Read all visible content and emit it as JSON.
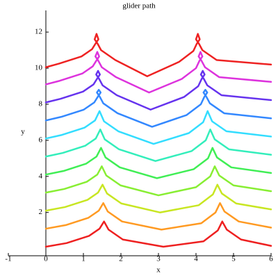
{
  "chart_data": {
    "type": "line",
    "title": "glider path",
    "xlabel": "x",
    "ylabel": "y",
    "xlim": [
      -1,
      6
    ],
    "ylim": [
      -0.4,
      13.2
    ],
    "xticks": [
      -1,
      0,
      1,
      2,
      3,
      4,
      5,
      6
    ],
    "yticks": [
      2,
      4,
      6,
      8,
      10,
      12
    ],
    "series": [
      {
        "color": "#ee2020",
        "x": [
          0,
          0.55,
          1.15,
          1.43,
          1.55,
          1.67,
          2.05,
          3.13,
          4.2,
          4.58,
          4.7,
          4.82,
          5.2,
          6
        ],
        "y": [
          0.1,
          0.3,
          0.7,
          1.1,
          1.5,
          1.05,
          0.5,
          0.1,
          0.4,
          1.0,
          1.5,
          1.05,
          0.5,
          0.15
        ]
      },
      {
        "color": "#ff9a22",
        "x": [
          0,
          0.53,
          1.13,
          1.41,
          1.53,
          1.65,
          2.03,
          3.08,
          4.14,
          4.52,
          4.64,
          4.76,
          5.14,
          6
        ],
        "y": [
          1.1,
          1.3,
          1.7,
          2.1,
          2.52,
          2.05,
          1.5,
          1.05,
          1.4,
          2.0,
          2.52,
          2.05,
          1.5,
          1.16
        ]
      },
      {
        "color": "#c8e622",
        "x": [
          0,
          0.51,
          1.11,
          1.39,
          1.51,
          1.63,
          2.01,
          3.04,
          4.07,
          4.45,
          4.57,
          4.69,
          5.07,
          6
        ],
        "y": [
          2.1,
          2.3,
          2.7,
          3.1,
          3.54,
          3.05,
          2.5,
          2.0,
          2.4,
          3.0,
          3.54,
          3.05,
          2.5,
          2.17
        ]
      },
      {
        "color": "#88ee33",
        "x": [
          0,
          0.49,
          1.09,
          1.37,
          1.49,
          1.61,
          1.99,
          3.0,
          4.0,
          4.38,
          4.5,
          4.62,
          5.0,
          6
        ],
        "y": [
          3.1,
          3.3,
          3.7,
          4.1,
          4.56,
          4.05,
          3.5,
          2.95,
          3.4,
          4.0,
          4.56,
          4.05,
          3.5,
          3.18
        ]
      },
      {
        "color": "#40ee55",
        "x": [
          0,
          0.47,
          1.07,
          1.35,
          1.47,
          1.59,
          1.97,
          2.96,
          3.94,
          4.32,
          4.44,
          4.56,
          4.94,
          6
        ],
        "y": [
          4.1,
          4.3,
          4.7,
          5.1,
          5.58,
          5.05,
          4.5,
          3.9,
          4.4,
          5.0,
          5.58,
          5.05,
          4.5,
          4.19
        ]
      },
      {
        "color": "#33eebb",
        "x": [
          0,
          0.45,
          1.05,
          1.33,
          1.45,
          1.57,
          1.95,
          2.92,
          3.88,
          4.26,
          4.38,
          4.5,
          4.88,
          6
        ],
        "y": [
          5.1,
          5.3,
          5.7,
          6.1,
          6.6,
          6.05,
          5.5,
          4.85,
          5.4,
          6.0,
          6.6,
          6.05,
          5.5,
          5.2
        ]
      },
      {
        "color": "#33ddff",
        "x": [
          0,
          0.43,
          1.03,
          1.31,
          1.43,
          1.55,
          1.93,
          2.87,
          3.81,
          4.19,
          4.31,
          4.43,
          4.81,
          6
        ],
        "y": [
          6.1,
          6.3,
          6.7,
          7.1,
          7.62,
          7.05,
          6.5,
          5.8,
          6.4,
          7.0,
          7.62,
          7.05,
          6.5,
          6.21
        ]
      },
      {
        "color": "#3388ff",
        "x": [
          0,
          0.41,
          1.01,
          1.29,
          1.38,
          1.46,
          1.41,
          1.36,
          1.44,
          1.53,
          1.91,
          2.83,
          3.75,
          4.13,
          4.22,
          4.3,
          4.25,
          4.2,
          4.28,
          4.37,
          4.75,
          6
        ],
        "y": [
          7.1,
          7.3,
          7.7,
          8.1,
          8.4,
          8.65,
          8.8,
          8.65,
          8.4,
          8.05,
          7.5,
          6.75,
          7.4,
          8.0,
          8.4,
          8.65,
          8.8,
          8.65,
          8.4,
          8.05,
          7.5,
          7.22
        ]
      },
      {
        "color": "#6633ee",
        "x": [
          0,
          0.39,
          0.99,
          1.27,
          1.36,
          1.44,
          1.39,
          1.34,
          1.42,
          1.51,
          1.89,
          2.79,
          3.68,
          4.06,
          4.15,
          4.23,
          4.18,
          4.13,
          4.21,
          4.3,
          4.68,
          6
        ],
        "y": [
          8.1,
          8.3,
          8.7,
          9.1,
          9.4,
          9.65,
          9.85,
          9.65,
          9.4,
          9.05,
          8.5,
          7.7,
          8.4,
          9.0,
          9.4,
          9.65,
          9.85,
          9.65,
          9.4,
          9.05,
          8.5,
          8.23
        ]
      },
      {
        "color": "#dd33dd",
        "x": [
          0,
          0.37,
          0.97,
          1.25,
          1.34,
          1.42,
          1.37,
          1.32,
          1.4,
          1.49,
          1.87,
          2.75,
          3.62,
          4.0,
          4.09,
          4.17,
          4.12,
          4.07,
          4.15,
          4.24,
          4.62,
          6
        ],
        "y": [
          9.1,
          9.3,
          9.7,
          10.1,
          10.4,
          10.65,
          10.9,
          10.65,
          10.4,
          10.05,
          9.5,
          8.65,
          9.4,
          10.0,
          10.4,
          10.65,
          10.9,
          10.65,
          10.4,
          10.05,
          9.5,
          9.24
        ]
      },
      {
        "color": "#ee2222",
        "x": [
          0,
          0.35,
          0.95,
          1.23,
          1.32,
          1.4,
          1.35,
          1.3,
          1.38,
          1.47,
          1.85,
          2.7,
          3.55,
          3.93,
          4.02,
          4.1,
          4.05,
          4.0,
          4.08,
          4.17,
          4.55,
          6
        ],
        "y": [
          10.05,
          10.25,
          10.65,
          11.05,
          11.35,
          11.6,
          11.9,
          11.6,
          11.35,
          11.0,
          10.45,
          9.55,
          10.35,
          10.95,
          11.35,
          11.6,
          11.9,
          11.6,
          11.35,
          11.0,
          10.45,
          10.2
        ]
      }
    ]
  }
}
